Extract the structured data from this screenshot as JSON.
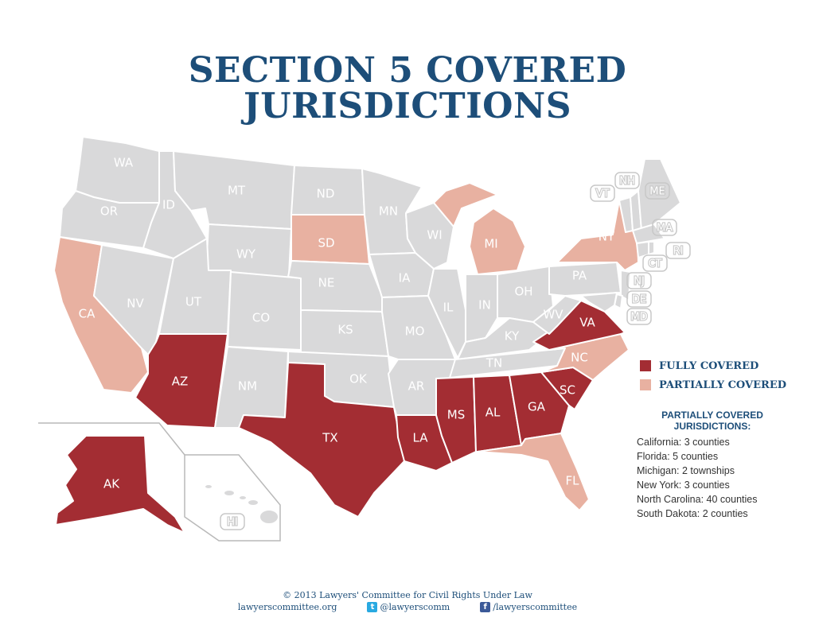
{
  "title": {
    "line1": "SECTION 5 COVERED",
    "line2": "JURISDICTIONS"
  },
  "colors": {
    "fully": "#a32d33",
    "partial": "#e8b1a1",
    "none": "#d9d9da",
    "title": "#1d4e79"
  },
  "map": {
    "state_labels": {
      "WA": "WA",
      "OR": "OR",
      "CA": "CA",
      "NV": "NV",
      "ID": "ID",
      "MT": "MT",
      "WY": "WY",
      "UT": "UT",
      "AZ": "AZ",
      "CO": "CO",
      "NM": "NM",
      "ND": "ND",
      "SD": "SD",
      "NE": "NE",
      "KS": "KS",
      "OK": "OK",
      "TX": "TX",
      "MN": "MN",
      "IA": "IA",
      "MO": "MO",
      "AR": "AR",
      "LA": "LA",
      "WI": "WI",
      "IL": "IL",
      "MI": "MI",
      "IN": "IN",
      "OH": "OH",
      "KY": "KY",
      "TN": "TN",
      "MS": "MS",
      "AL": "AL",
      "GA": "GA",
      "FL": "FL",
      "SC": "SC",
      "NC": "NC",
      "VA": "VA",
      "WV": "WV",
      "PA": "PA",
      "NY": "NY",
      "AK": "AK",
      "HI": "HI",
      "VT": "VT",
      "NH": "NH",
      "ME": "ME",
      "MA": "MA",
      "RI": "RI",
      "CT": "CT",
      "NJ": "NJ",
      "DE": "DE",
      "MD": "MD"
    }
  },
  "legend": {
    "fully": "FULLY COVERED",
    "partial": "PARTIALLY COVERED"
  },
  "partial_jurisdictions": {
    "title_line1": "PARTIALLY COVERED",
    "title_line2": "JURISDICTIONS:",
    "items": [
      "California: 3 counties",
      "Florida: 5 counties",
      "Michigan: 2 townships",
      "New York: 3 counties",
      "North Carolina: 40 counties",
      "South Dakota: 2 counties"
    ]
  },
  "footer": {
    "copyright": "© 2013 Lawyers' Committee for Civil Rights Under Law",
    "website": "lawyerscommittee.org",
    "twitter": "@lawyerscomm",
    "facebook": "/lawyerscommittee",
    "twitter_icon": "twitter-icon",
    "facebook_icon": "facebook-icon"
  }
}
